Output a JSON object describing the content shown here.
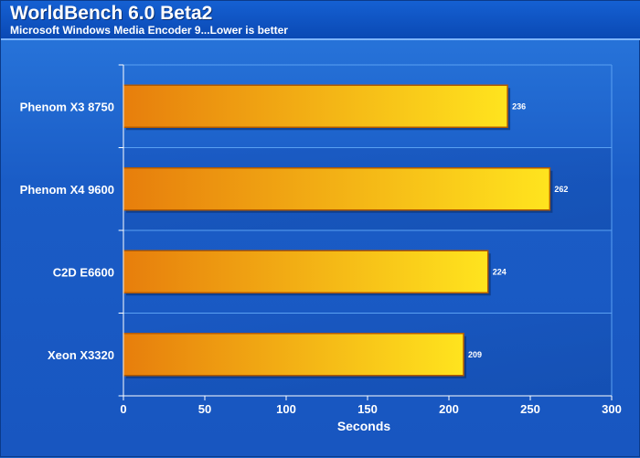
{
  "header": {
    "title": "WorldBench 6.0 Beta2",
    "subtitle": "Microsoft Windows Media Encoder 9...Lower is better"
  },
  "colors": {
    "bar_start": "#e77e0c",
    "bar_end": "#ffe41e",
    "background": "#1e63c8",
    "gridline": "#5aa0f2"
  },
  "chart_data": {
    "type": "bar",
    "orientation": "horizontal",
    "title": "WorldBench 6.0 Beta2",
    "subtitle": "Microsoft Windows Media Encoder 9...Lower is better",
    "categories": [
      "Phenom X3 8750",
      "Phenom X4 9600",
      "C2D E6600",
      "Xeon X3320"
    ],
    "values": [
      236,
      262,
      224,
      209
    ],
    "xlabel": "Seconds",
    "ylabel": "",
    "xlim": [
      0,
      300
    ],
    "xticks": [
      0,
      50,
      100,
      150,
      200,
      250,
      300
    ],
    "grid": "horizontal-separators",
    "legend": "none"
  }
}
